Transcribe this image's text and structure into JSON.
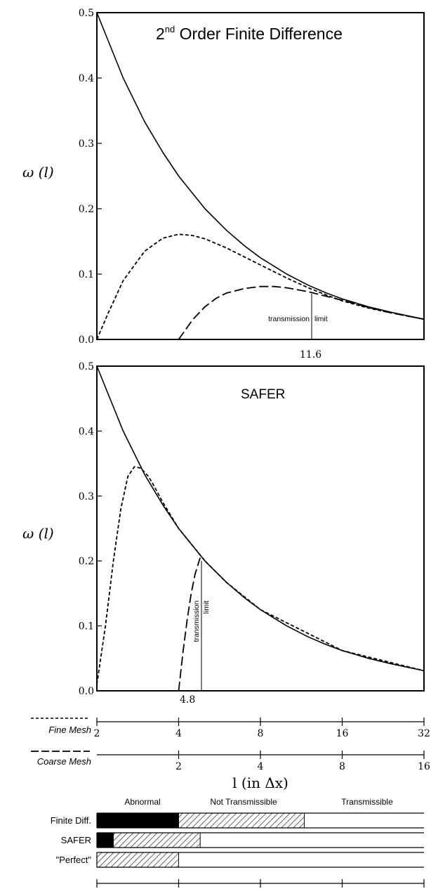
{
  "chart_data": [
    {
      "type": "line",
      "title": "2nd Order Finite Difference",
      "title_base": "2",
      "title_sup": "nd",
      "title_rest": " Order Finite Difference",
      "ylabel": "ω (l)",
      "ylim": [
        0,
        0.5
      ],
      "yticks": [
        "0.0",
        "0.1",
        "0.2",
        "0.3",
        "0.4",
        "0.5"
      ],
      "xscale": "log2",
      "xlim": [
        2,
        32
      ],
      "series": [
        {
          "style": "solid",
          "x": [
            2,
            2.5,
            3,
            3.5,
            4,
            5,
            6,
            7,
            8,
            10,
            12,
            14,
            16,
            20,
            24,
            28,
            32
          ],
          "y": [
            0.5,
            0.4,
            0.333,
            0.286,
            0.25,
            0.2,
            0.167,
            0.143,
            0.125,
            0.1,
            0.083,
            0.071,
            0.062,
            0.05,
            0.042,
            0.036,
            0.031
          ]
        },
        {
          "style": "short-dash",
          "x": [
            2,
            2.2,
            2.5,
            3,
            3.5,
            4,
            4.5,
            5,
            6,
            7,
            8,
            10,
            12,
            14,
            16,
            20,
            24,
            32
          ],
          "y": [
            0.0,
            0.04,
            0.09,
            0.135,
            0.155,
            0.161,
            0.159,
            0.154,
            0.14,
            0.126,
            0.114,
            0.094,
            0.079,
            0.068,
            0.059,
            0.048,
            0.041,
            0.031
          ]
        },
        {
          "style": "long-dash",
          "x": [
            4,
            4.5,
            5,
            5.5,
            6,
            7,
            8,
            9,
            10,
            12,
            14,
            16,
            20,
            24,
            32
          ],
          "y": [
            0.0,
            0.03,
            0.05,
            0.063,
            0.071,
            0.078,
            0.081,
            0.081,
            0.079,
            0.073,
            0.066,
            0.06,
            0.049,
            0.041,
            0.031
          ]
        }
      ],
      "marker": {
        "x": 11.6,
        "label": "11.6"
      },
      "annotation": "transmission limit",
      "annotation_parts": [
        "transmission",
        "limit"
      ]
    },
    {
      "type": "line",
      "title": "SAFER",
      "ylabel": "ω (l)",
      "ylim": [
        0,
        0.5
      ],
      "yticks": [
        "0.0",
        "0.1",
        "0.2",
        "0.3",
        "0.4",
        "0.5"
      ],
      "xscale": "log2",
      "xlim": [
        2,
        32
      ],
      "series": [
        {
          "style": "solid",
          "x": [
            2,
            2.5,
            3,
            3.5,
            4,
            5,
            6,
            7,
            8,
            10,
            12,
            14,
            16,
            20,
            24,
            28,
            32
          ],
          "y": [
            0.5,
            0.4,
            0.333,
            0.286,
            0.25,
            0.2,
            0.167,
            0.143,
            0.125,
            0.1,
            0.083,
            0.071,
            0.062,
            0.05,
            0.042,
            0.036,
            0.031
          ]
        },
        {
          "style": "short-dash",
          "x": [
            2,
            2.15,
            2.3,
            2.45,
            2.6,
            2.75,
            2.9,
            3.1,
            3.3,
            3.5,
            4,
            5,
            6,
            8,
            16,
            32
          ],
          "y": [
            0.01,
            0.1,
            0.2,
            0.28,
            0.33,
            0.345,
            0.343,
            0.33,
            0.31,
            0.29,
            0.25,
            0.2,
            0.167,
            0.125,
            0.062,
            0.031
          ]
        },
        {
          "style": "long-dash",
          "x": [
            4,
            4.15,
            4.3,
            4.45,
            4.6,
            4.8
          ],
          "y": [
            0.0,
            0.06,
            0.11,
            0.15,
            0.18,
            0.205
          ]
        }
      ],
      "marker": {
        "x": 4.8,
        "label": "4.8"
      },
      "annotation": "transmission limit",
      "annotation_parts": [
        "transmission",
        "limit"
      ]
    },
    {
      "type": "axis",
      "xlabel": "l (in Δx)",
      "fine_mesh": {
        "label": "Fine Mesh",
        "ticks": [
          "2",
          "4",
          "8",
          "16",
          "32"
        ]
      },
      "coarse_mesh": {
        "label": "Coarse Mesh",
        "ticks": [
          "2",
          "4",
          "8",
          "16"
        ]
      }
    },
    {
      "type": "bar",
      "column_headers": [
        "Abnormal",
        "Not Transmissible",
        "Transmissible"
      ],
      "rows": [
        {
          "label": "Finite Diff.",
          "abnormal_until": 4,
          "not_transmissible_until": 11.6
        },
        {
          "label": "SAFER",
          "abnormal_until": 2.3,
          "not_transmissible_until": 4.8
        },
        {
          "label": "\"Perfect\"",
          "abnormal_until": 2,
          "not_transmissible_until": 4
        }
      ]
    }
  ]
}
